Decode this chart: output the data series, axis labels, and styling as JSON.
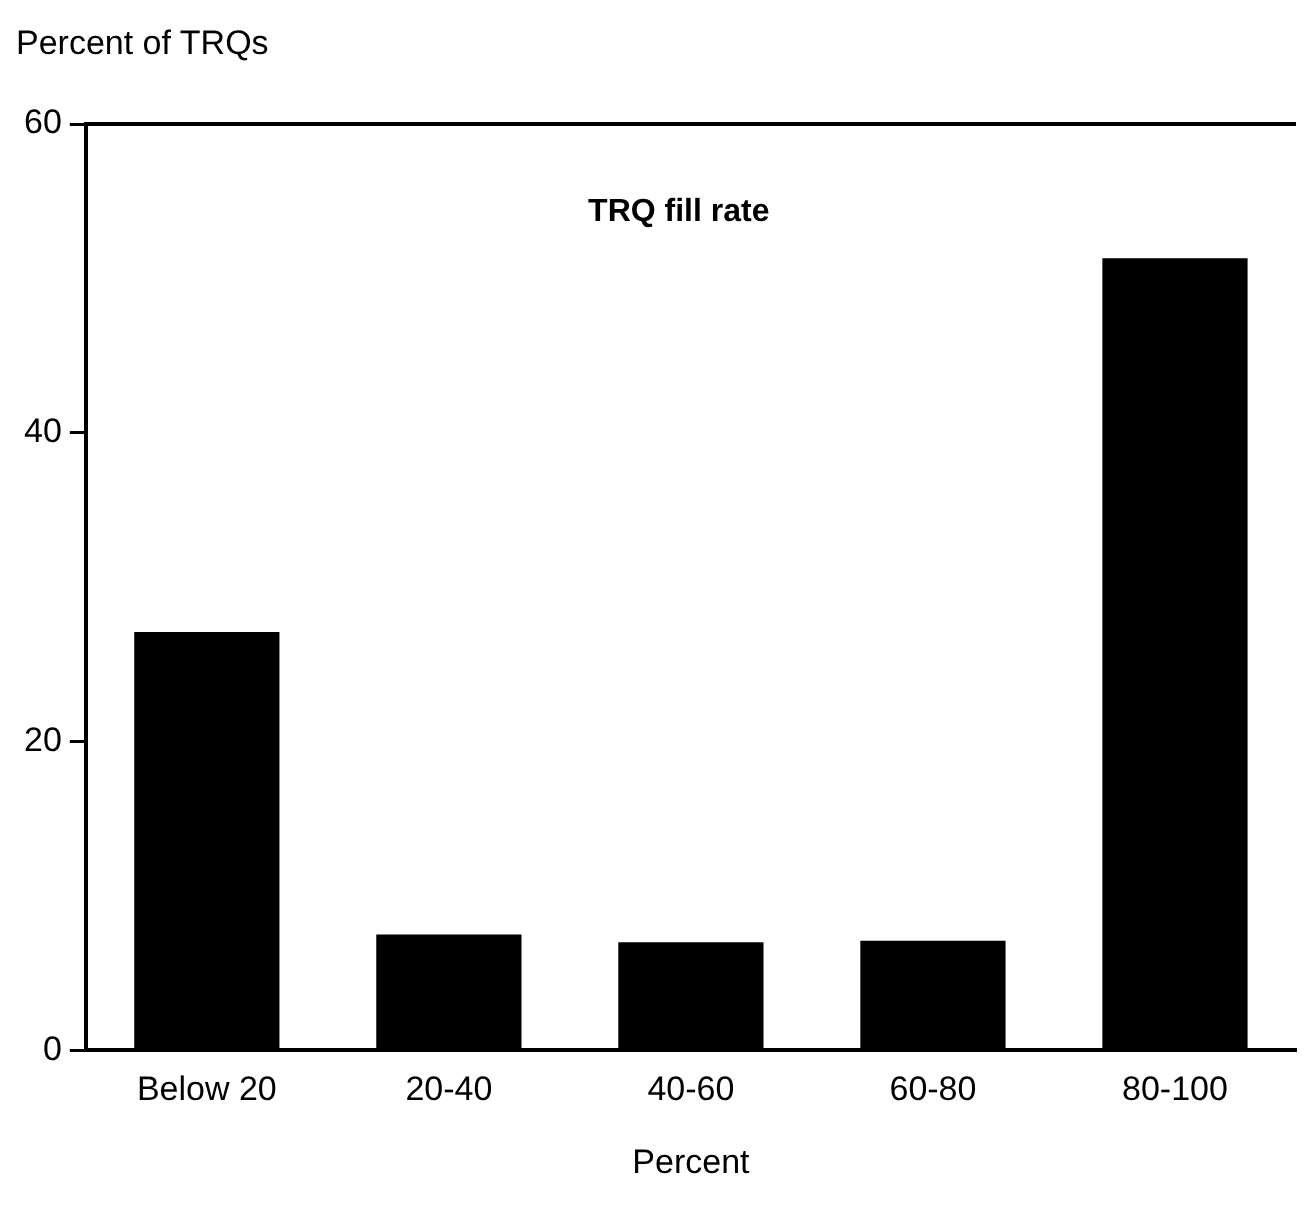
{
  "chart_data": {
    "type": "bar",
    "ylabel": "Percent of TRQs",
    "xlabel": "Percent",
    "annotations": [
      "TRQ fill rate"
    ],
    "categories": [
      "Below 20",
      "20-40",
      "40-60",
      "60-80",
      "80-100"
    ],
    "values": [
      27.1,
      7.5,
      7.0,
      7.1,
      51.3
    ],
    "color": "#000000",
    "ylim": [
      0,
      60
    ],
    "yticks": [
      0,
      20,
      40,
      60
    ],
    "grid": false,
    "legend": false
  }
}
